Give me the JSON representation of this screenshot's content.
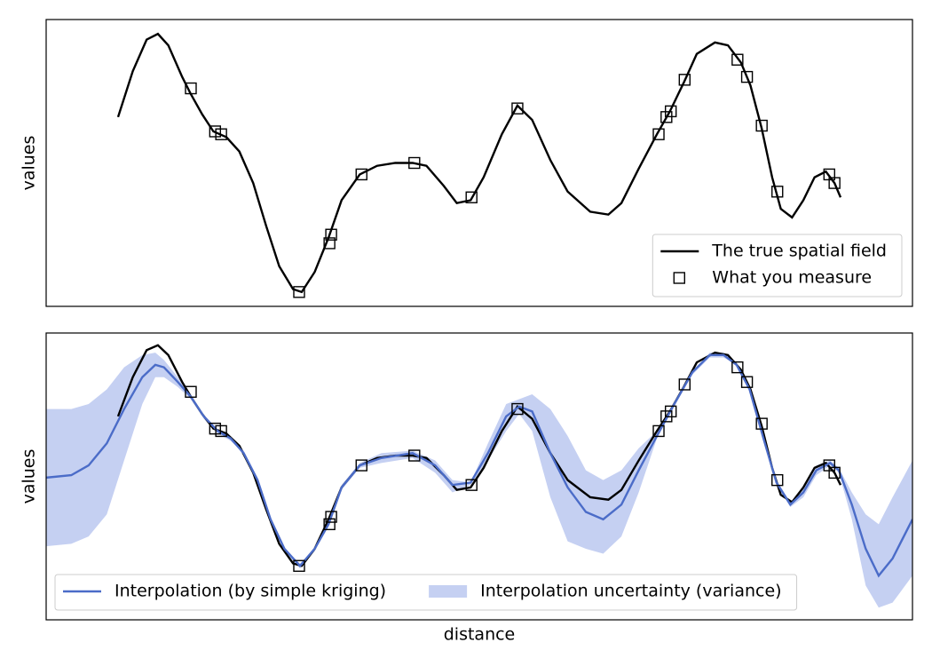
{
  "chart_data": [
    {
      "type": "line",
      "ylabel": "values",
      "xlim": [
        0,
        100
      ],
      "ylim": [
        0,
        10
      ],
      "legend": "lower right",
      "legend_columns": 1,
      "series": [
        {
          "name": "The true spatial field",
          "type": "line",
          "color": "#000000",
          "x": [
            8.3,
            10.0,
            11.6,
            12.9,
            14.1,
            15.7,
            16.7,
            18.0,
            19.3,
            20.8,
            22.3,
            23.9,
            25.4,
            26.9,
            28.5,
            29.5,
            31.0,
            32.6,
            34.1,
            36.2,
            38.2,
            40.3,
            42.3,
            43.9,
            45.9,
            47.4,
            49.0,
            50.5,
            52.6,
            54.4,
            56.1,
            58.2,
            60.2,
            62.8,
            64.9,
            66.4,
            68.4,
            70.5,
            72.0,
            73.6,
            75.1,
            77.2,
            78.7,
            80.2,
            81.3,
            82.6,
            83.8,
            84.8,
            86.1,
            87.4,
            88.7,
            90.0,
            91.0,
            91.7
          ],
          "values": [
            6.6,
            8.2,
            9.3,
            9.5,
            9.1,
            8.0,
            7.4,
            6.7,
            6.1,
            5.9,
            5.4,
            4.3,
            2.8,
            1.4,
            0.6,
            0.5,
            1.2,
            2.4,
            3.7,
            4.6,
            4.9,
            5.0,
            5.0,
            4.9,
            4.2,
            3.6,
            3.7,
            4.5,
            6.0,
            7.0,
            6.5,
            5.1,
            4.0,
            3.3,
            3.2,
            3.6,
            4.8,
            6.0,
            6.8,
            7.8,
            8.8,
            9.2,
            9.1,
            8.5,
            7.7,
            6.2,
            4.5,
            3.4,
            3.1,
            3.7,
            4.5,
            4.7,
            4.3,
            3.8
          ]
        },
        {
          "name": "What you measure",
          "type": "scatter",
          "color": "#000000",
          "x": [
            16.7,
            19.5,
            20.2,
            29.2,
            32.7,
            32.9,
            36.4,
            42.5,
            49.1,
            54.4,
            70.7,
            71.6,
            72.1,
            73.7,
            79.8,
            80.9,
            82.6,
            84.4,
            90.4,
            91.0
          ],
          "values": [
            7.6,
            6.1,
            6.0,
            0.5,
            2.2,
            2.5,
            4.6,
            5.0,
            3.8,
            6.9,
            6.0,
            6.6,
            6.8,
            7.9,
            8.6,
            8.0,
            6.3,
            4.0,
            4.6,
            4.3
          ]
        }
      ]
    },
    {
      "type": "line",
      "ylabel": "values",
      "xlabel": "distance",
      "xlim": [
        0,
        100
      ],
      "ylim": [
        -1.7,
        10
      ],
      "legend": "lower left",
      "legend_columns": 2,
      "series": [
        {
          "name": "Interpolation (by simple kriging)",
          "type": "line",
          "color": "#4b6cc8",
          "x": [
            0,
            2.9,
            4.9,
            7.0,
            9.0,
            11.1,
            12.6,
            13.6,
            15.2,
            16.7,
            18.2,
            19.8,
            21.3,
            22.8,
            24.4,
            25.9,
            27.5,
            29.3,
            31.0,
            32.6,
            34.1,
            36.2,
            38.7,
            42.3,
            44.9,
            46.9,
            49.0,
            51.0,
            53.1,
            54.6,
            56.1,
            58.2,
            60.2,
            62.3,
            64.3,
            66.4,
            68.4,
            70.5,
            72.5,
            74.6,
            76.6,
            78.2,
            79.7,
            81.2,
            82.8,
            84.3,
            85.9,
            87.4,
            88.9,
            90.5,
            91.5,
            93.0,
            94.6,
            96.1,
            97.7,
            100
          ],
          "values": [
            4.1,
            4.2,
            4.6,
            5.5,
            6.9,
            8.2,
            8.7,
            8.6,
            8.0,
            7.4,
            6.6,
            6.0,
            5.7,
            5.1,
            4.0,
            2.4,
            1.2,
            0.5,
            1.2,
            2.2,
            3.7,
            4.6,
            4.9,
            5.1,
            4.6,
            3.8,
            3.9,
            5.1,
            6.6,
            7.0,
            6.8,
            5.1,
            3.7,
            2.7,
            2.4,
            3.0,
            4.4,
            5.8,
            7.1,
            8.4,
            9.1,
            9.1,
            8.7,
            7.7,
            5.7,
            3.9,
            3.0,
            3.5,
            4.4,
            4.7,
            4.4,
            3.0,
            1.2,
            0.1,
            0.8,
            2.4
          ]
        },
        {
          "name": "Interpolation uncertainty (variance)",
          "type": "band",
          "color": "#c5d0f2",
          "x": [
            0,
            2.9,
            4.9,
            7.0,
            9.0,
            11.1,
            12.6,
            13.6,
            15.2,
            16.7,
            18.2,
            19.8,
            21.3,
            22.8,
            24.4,
            25.9,
            27.5,
            29.3,
            31.0,
            32.6,
            34.1,
            36.2,
            38.7,
            42.3,
            44.9,
            46.9,
            49.0,
            51.0,
            53.1,
            54.6,
            56.1,
            58.2,
            60.2,
            62.3,
            64.3,
            66.4,
            68.4,
            70.5,
            72.5,
            74.6,
            76.6,
            78.2,
            79.7,
            81.2,
            82.8,
            84.3,
            85.9,
            87.4,
            88.9,
            90.5,
            91.5,
            93.0,
            94.6,
            96.1,
            97.7,
            100
          ],
          "upper": [
            6.9,
            6.9,
            7.1,
            7.7,
            8.6,
            9.1,
            9.2,
            8.9,
            8.2,
            7.5,
            6.6,
            6.0,
            5.7,
            5.2,
            4.1,
            2.5,
            1.2,
            0.6,
            1.2,
            2.3,
            3.8,
            4.7,
            5.1,
            5.2,
            4.8,
            4.0,
            3.9,
            5.5,
            7.1,
            7.3,
            7.5,
            6.9,
            5.8,
            4.4,
            4.0,
            4.4,
            5.3,
            6.0,
            7.2,
            8.4,
            9.2,
            9.2,
            8.8,
            7.7,
            5.8,
            4.0,
            3.1,
            3.7,
            4.6,
            4.8,
            4.5,
            3.5,
            2.6,
            2.2,
            3.3,
            4.8
          ],
          "lower": [
            1.3,
            1.4,
            1.7,
            2.6,
            4.8,
            7.1,
            8.2,
            8.2,
            7.8,
            7.3,
            6.5,
            5.9,
            5.6,
            5.1,
            4.0,
            2.3,
            1.1,
            0.4,
            1.1,
            2.2,
            3.6,
            4.5,
            4.7,
            4.9,
            4.3,
            3.5,
            3.8,
            4.8,
            6.0,
            6.7,
            6.0,
            3.3,
            1.5,
            1.2,
            1.0,
            1.7,
            3.5,
            5.7,
            7.0,
            8.3,
            9.0,
            9.0,
            8.7,
            7.6,
            5.6,
            3.8,
            2.9,
            3.3,
            4.2,
            4.6,
            4.3,
            2.4,
            -0.3,
            -1.2,
            -1.0,
            0.1
          ]
        },
        {
          "type": "line",
          "color": "#000000",
          "x": [
            8.3,
            10.0,
            11.6,
            12.9,
            14.1,
            15.7,
            16.7,
            18.0,
            19.3,
            20.8,
            22.3,
            23.9,
            25.4,
            26.9,
            28.5,
            29.5,
            31.0,
            32.6,
            34.1,
            36.2,
            38.2,
            40.3,
            42.3,
            43.9,
            45.9,
            47.4,
            49.0,
            50.5,
            52.6,
            54.4,
            56.1,
            58.2,
            60.2,
            62.8,
            64.9,
            66.4,
            68.4,
            70.5,
            72.0,
            73.6,
            75.1,
            77.2,
            78.7,
            80.2,
            81.3,
            82.6,
            83.8,
            84.8,
            86.1,
            87.4,
            88.7,
            90.0,
            91.0,
            91.7
          ],
          "values": [
            6.6,
            8.2,
            9.3,
            9.5,
            9.1,
            8.0,
            7.4,
            6.7,
            6.1,
            5.9,
            5.4,
            4.3,
            2.8,
            1.4,
            0.6,
            0.5,
            1.2,
            2.4,
            3.7,
            4.6,
            4.9,
            5.0,
            5.0,
            4.9,
            4.2,
            3.6,
            3.7,
            4.5,
            6.0,
            7.0,
            6.5,
            5.1,
            4.0,
            3.3,
            3.2,
            3.6,
            4.8,
            6.0,
            6.8,
            7.8,
            8.8,
            9.2,
            9.1,
            8.5,
            7.7,
            6.2,
            4.5,
            3.4,
            3.1,
            3.7,
            4.5,
            4.7,
            4.3,
            3.8
          ]
        },
        {
          "type": "scatter",
          "color": "#000000",
          "x": [
            16.7,
            19.5,
            20.2,
            29.2,
            32.7,
            32.9,
            36.4,
            42.5,
            49.1,
            54.4,
            70.7,
            71.6,
            72.1,
            73.7,
            79.8,
            80.9,
            82.6,
            84.4,
            90.4,
            91.0
          ],
          "values": [
            7.6,
            6.1,
            6.0,
            0.5,
            2.2,
            2.5,
            4.6,
            5.0,
            3.8,
            6.9,
            6.0,
            6.6,
            6.8,
            7.9,
            8.6,
            8.0,
            6.3,
            4.0,
            4.6,
            4.3
          ]
        }
      ]
    }
  ]
}
